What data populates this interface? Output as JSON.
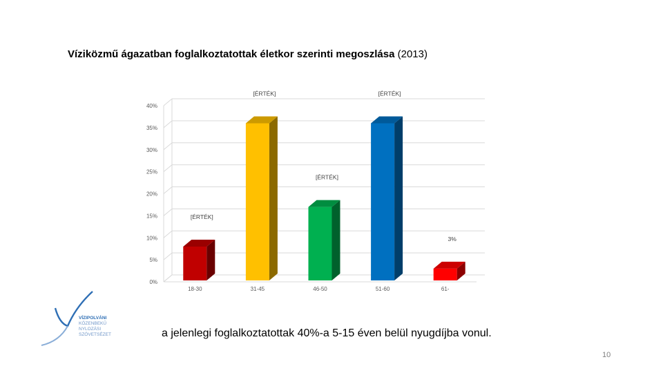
{
  "slide": {
    "title_bold": "Víziközmű ágazatban foglalkoztatottak életkor szerinti megoszlása",
    "title_year": "(2013)",
    "subtitle": "a jelenlegi foglalkoztatottak 40%-a 5-15 éven belül nyugdíjba vonul.",
    "page_number": "10"
  },
  "logo": {
    "lines": [
      "VÍZIPOLVÁNI",
      "KÖZENBEKŰ",
      "NYLOZÁSI",
      "SZÖVETSÉZET"
    ],
    "colors": {
      "primary": "#2f6fb5",
      "secondary": "#8aaed8"
    }
  },
  "chart_data": {
    "type": "bar",
    "style": "3d-column",
    "categories": [
      "18-30",
      "31-45",
      "46-50",
      "51-60",
      "61-"
    ],
    "values": [
      8,
      36,
      17,
      36,
      3
    ],
    "data_labels": [
      "[ÉRTÉK]",
      "[ÉRTÉK]",
      "[ÉRTÉK]",
      "[ÉRTÉK]",
      "3%"
    ],
    "colors": [
      "#c00000",
      "#ffc000",
      "#00b050",
      "#0070c0",
      "#ff0000"
    ],
    "ylim": [
      0,
      40
    ],
    "yticks": [
      "0%",
      "5%",
      "10%",
      "15%",
      "20%",
      "25%",
      "30%",
      "35%",
      "40%"
    ],
    "grid": true,
    "legend": "none",
    "title": "",
    "xlabel": "",
    "ylabel": ""
  }
}
